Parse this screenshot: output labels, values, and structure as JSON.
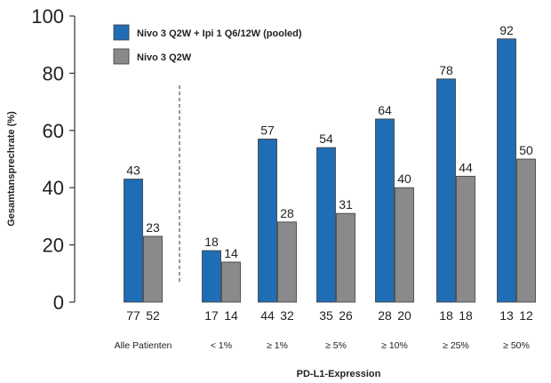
{
  "chart_data": {
    "type": "bar",
    "ylabel": "Gesamtansprechrate (%)",
    "xlabel": "PD-L1-Expression",
    "ylim": [
      0,
      100
    ],
    "yticks": [
      0,
      20,
      40,
      60,
      80,
      100
    ],
    "categories": [
      "Alle Patienten",
      "< 1%",
      "≥ 1%",
      "≥ 5%",
      "≥ 10%",
      "≥ 25%",
      "≥ 50%"
    ],
    "series": [
      {
        "name": "Nivo 3 Q2W + Ipi 1 Q6/12W (pooled)",
        "color": "#1f6db5",
        "values": [
          43,
          18,
          57,
          54,
          64,
          78,
          92
        ],
        "n": [
          "77",
          "17",
          "44",
          "35",
          "28",
          "18",
          "13"
        ]
      },
      {
        "name": "Nivo 3 Q2W",
        "color": "#8a8a8c",
        "values": [
          23,
          14,
          28,
          31,
          40,
          44,
          50
        ],
        "n": [
          "52",
          "14",
          "32",
          "26",
          "20",
          "18",
          "12"
        ]
      }
    ],
    "legend_position": "top-left",
    "separator_after_category": 0
  }
}
